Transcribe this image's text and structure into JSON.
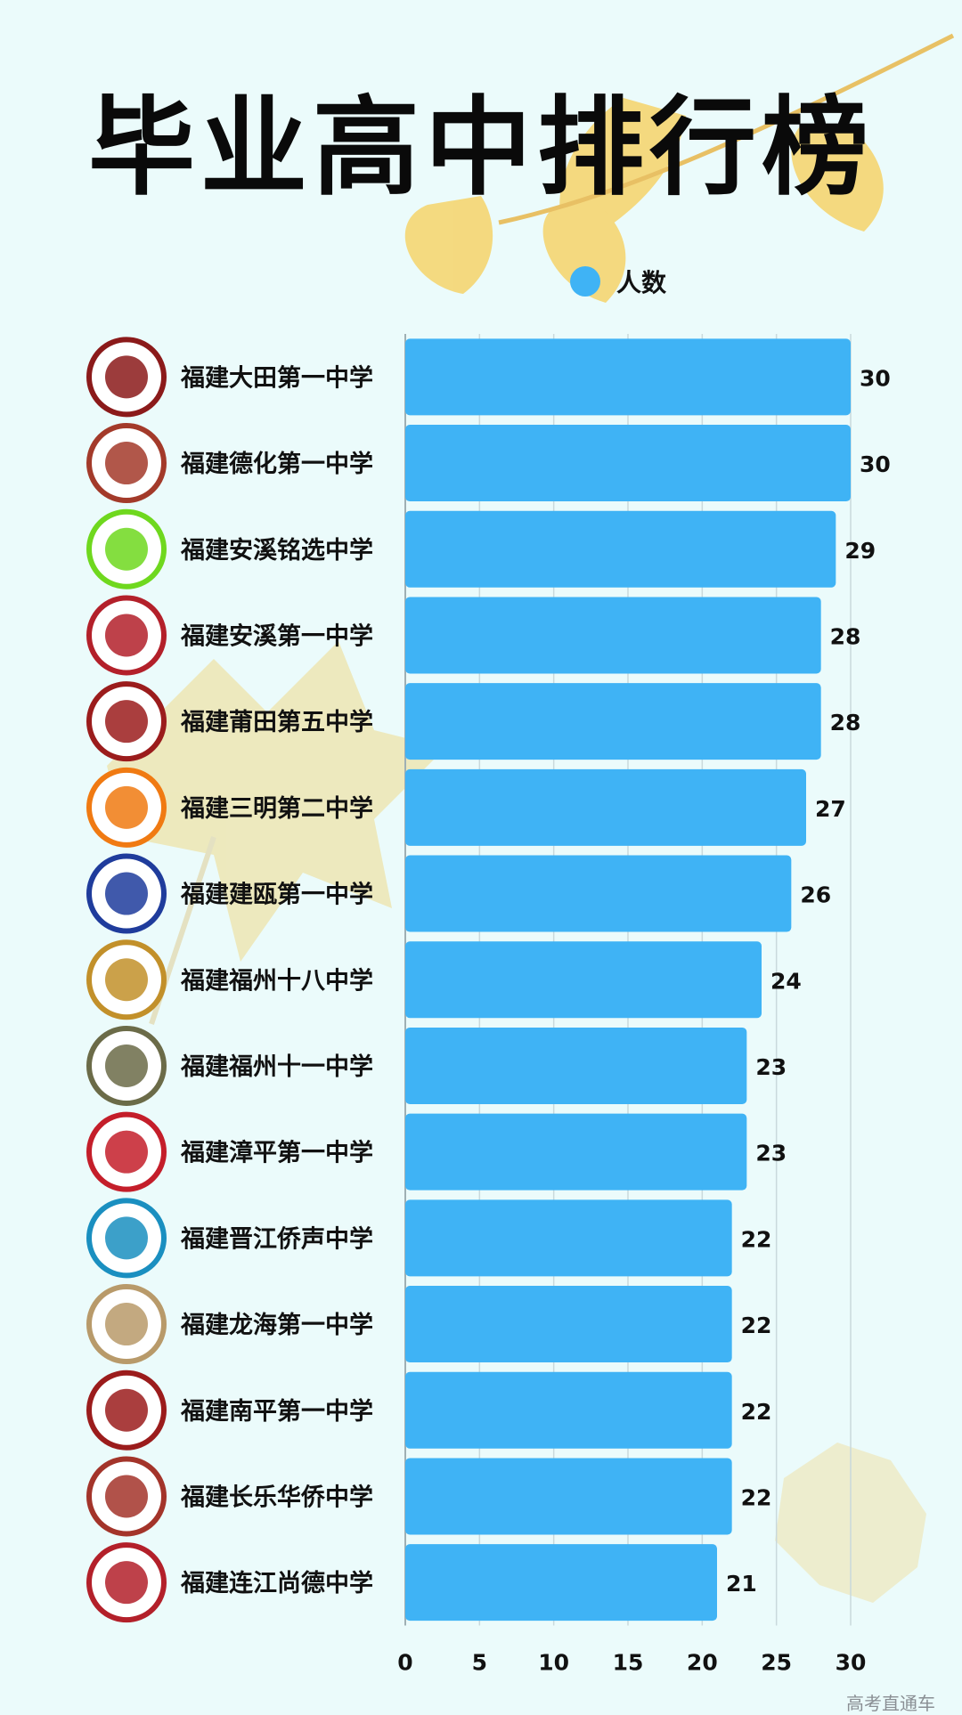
{
  "title": "毕业高中排行榜",
  "watermark": "高考直通车",
  "colors": {
    "bar": "#3fb3f5",
    "background": "#ebfbfb",
    "leaf": "#f6d46a"
  },
  "chart_data": {
    "type": "bar",
    "orientation": "horizontal",
    "categories": [
      "福建大田第一中学",
      "福建德化第一中学",
      "福建安溪铭选中学",
      "福建安溪第一中学",
      "福建莆田第五中学",
      "福建三明第二中学",
      "福建建瓯第一中学",
      "福建福州十八中学",
      "福建福州十一中学",
      "福建漳平第一中学",
      "福建晋江侨声中学",
      "福建龙海第一中学",
      "福建南平第一中学",
      "福建长乐华侨中学",
      "福建连江尚德中学"
    ],
    "series": [
      {
        "name": "人数",
        "values": [
          30,
          30,
          29,
          28,
          28,
          27,
          26,
          24,
          23,
          23,
          22,
          22,
          22,
          22,
          21
        ]
      }
    ],
    "xlim": [
      0,
      30
    ],
    "xticks": [
      "0",
      "5",
      "10",
      "15",
      "20",
      "25",
      "30"
    ],
    "legend": "top-center",
    "grid": true
  }
}
